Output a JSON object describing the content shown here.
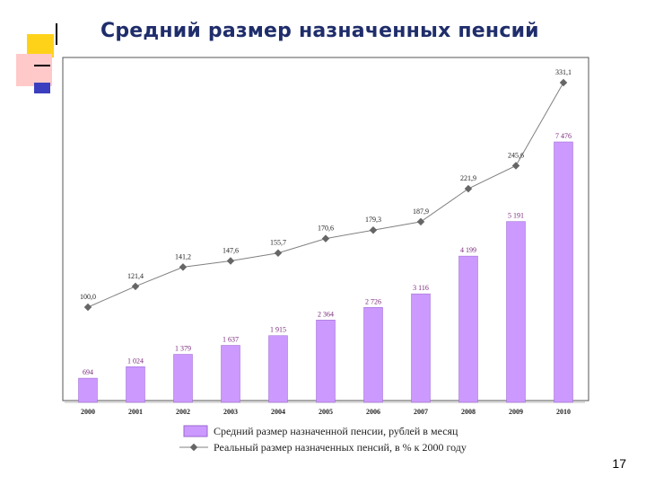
{
  "title": "Средний размер назначенных пенсий",
  "slide_number": "17",
  "colors": {
    "bar": "#cc99ff",
    "bar_stroke": "#9966cc",
    "line": "#808080",
    "marker": "#666666",
    "title": "#1f2d6b"
  },
  "chart_data": {
    "type": "bar+line",
    "categories": [
      "2000",
      "2001",
      "2002",
      "2003",
      "2004",
      "2005",
      "2006",
      "2007",
      "2008",
      "2009",
      "2010"
    ],
    "series": [
      {
        "name": "Средний размер назначенной пенсии, рублей в месяц",
        "type": "bar",
        "values": [
          694,
          1024,
          1379,
          1637,
          1915,
          2364,
          2726,
          3116,
          4199,
          5191,
          7476
        ],
        "labels": [
          "694",
          "1 024",
          "1 379",
          "1 637",
          "1 915",
          "2 364",
          "2 726",
          "3 116",
          "4 199",
          "5 191",
          "7 476"
        ],
        "ylim": [
          0,
          8000
        ]
      },
      {
        "name": "Реальный размер назначенных пенсий, в % к 2000 году",
        "type": "line",
        "values": [
          100.0,
          121.4,
          141.2,
          147.6,
          155.7,
          170.6,
          179.3,
          187.9,
          221.9,
          245.6,
          331.1
        ],
        "labels": [
          "100,0",
          "121,4",
          "141,2",
          "147,6",
          "155,7",
          "170,6",
          "179,3",
          "187,9",
          "221,9",
          "245,6",
          "331,1"
        ],
        "ylim": [
          0,
          400
        ]
      }
    ],
    "legend_position": "bottom"
  }
}
